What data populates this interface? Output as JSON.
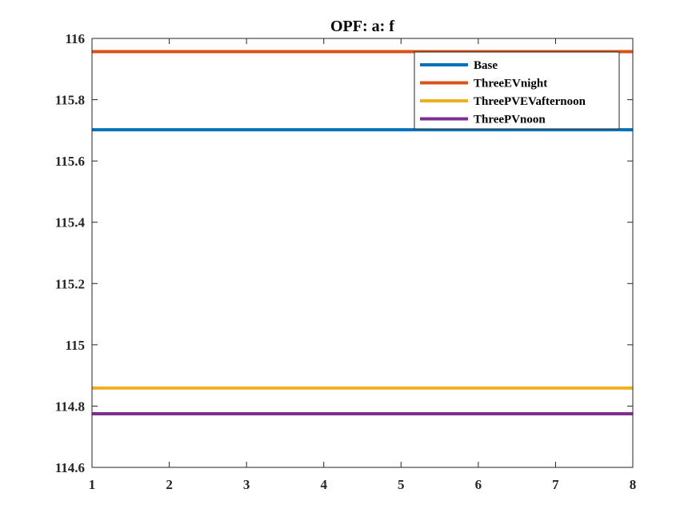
{
  "chart_data": {
    "type": "line",
    "title": "OPF: a: f",
    "xlabel": "",
    "ylabel": "",
    "xlim": [
      1,
      8
    ],
    "ylim": [
      114.6,
      116
    ],
    "x": [
      1,
      2,
      3,
      4,
      5,
      6,
      7,
      8
    ],
    "xticks": [
      "1",
      "2",
      "3",
      "4",
      "5",
      "6",
      "7",
      "8"
    ],
    "yticks": [
      "114.6",
      "114.8",
      "115",
      "115.2",
      "115.4",
      "115.6",
      "115.8",
      "116"
    ],
    "grid": false,
    "legend_position": "top-right",
    "series": [
      {
        "name": "Base",
        "color": "#0072BD",
        "values": [
          115.702,
          115.702,
          115.702,
          115.702,
          115.702,
          115.702,
          115.702,
          115.702
        ]
      },
      {
        "name": "ThreeEVnight",
        "color": "#D95319",
        "values": [
          115.957,
          115.957,
          115.957,
          115.957,
          115.957,
          115.957,
          115.957,
          115.957
        ]
      },
      {
        "name": "ThreePVEVafternoon",
        "color": "#EDB120",
        "values": [
          114.859,
          114.859,
          114.859,
          114.859,
          114.859,
          114.859,
          114.859,
          114.859
        ]
      },
      {
        "name": "ThreePVnoon",
        "color": "#7E2F8E",
        "values": [
          114.775,
          114.775,
          114.775,
          114.775,
          114.775,
          114.775,
          114.775,
          114.775
        ]
      }
    ]
  }
}
